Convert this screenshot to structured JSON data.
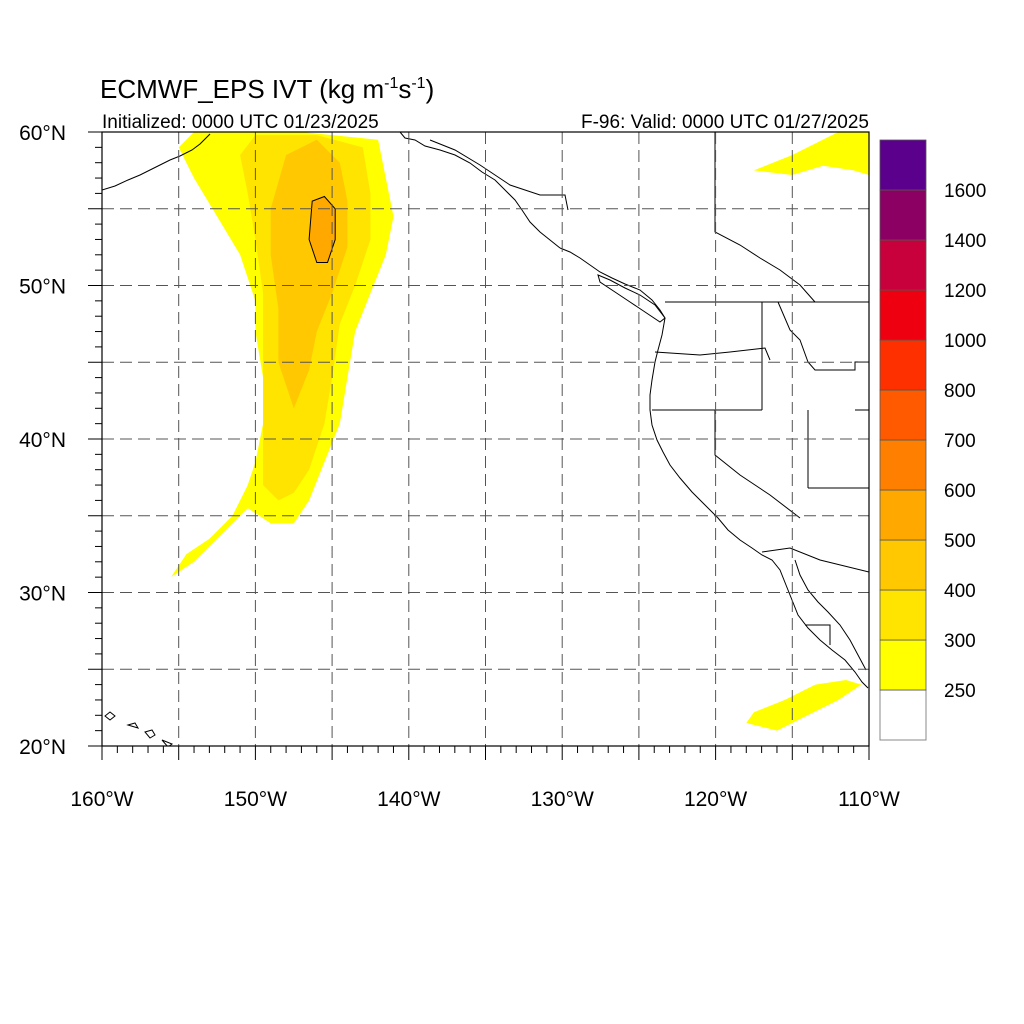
{
  "title": {
    "main": "ECMWF_EPS IVT (kg m",
    "sup1": "-1",
    "mid": "s",
    "sup2": "-1",
    "end": ")"
  },
  "subtitle_left": "Initialized: 0000 UTC 01/23/2025",
  "subtitle_right": "F-96: Valid: 0000 UTC 01/27/2025",
  "x_ticks": [
    {
      "value": -160,
      "label": "160°W"
    },
    {
      "value": -150,
      "label": "150°W"
    },
    {
      "value": -140,
      "label": "140°W"
    },
    {
      "value": -130,
      "label": "130°W"
    },
    {
      "value": -120,
      "label": "120°W"
    },
    {
      "value": -110,
      "label": "110°W"
    }
  ],
  "y_ticks": [
    {
      "value": 60,
      "label": "60°N"
    },
    {
      "value": 50,
      "label": "50°N"
    },
    {
      "value": 40,
      "label": "40°N"
    },
    {
      "value": 30,
      "label": "30°N"
    },
    {
      "value": 20,
      "label": "20°N"
    }
  ],
  "colorbar": {
    "levels": [
      {
        "label": "250",
        "color": "#ffff00"
      },
      {
        "label": "300",
        "color": "#ffe400"
      },
      {
        "label": "400",
        "color": "#ffc800"
      },
      {
        "label": "500",
        "color": "#ffa800"
      },
      {
        "label": "600",
        "color": "#ff8000"
      },
      {
        "label": "700",
        "color": "#ff5a00"
      },
      {
        "label": "800",
        "color": "#ff3000"
      },
      {
        "label": "1000",
        "color": "#ee0010"
      },
      {
        "label": "1200",
        "color": "#c8003c"
      },
      {
        "label": "1400",
        "color": "#8c0064"
      },
      {
        "label": "1600",
        "color": "#5a008c"
      }
    ],
    "below_color": "#ffffff"
  },
  "chart_data": {
    "type": "heatmap",
    "lon_range": [
      -160,
      -110
    ],
    "lat_range": [
      20,
      60
    ],
    "grid": true,
    "regions": [
      {
        "level": "250",
        "points": [
          [
            -155.5,
            31
          ],
          [
            -154.5,
            32.5
          ],
          [
            -153,
            33.5
          ],
          [
            -151.5,
            35
          ],
          [
            -150.5,
            37
          ],
          [
            -150,
            38.5
          ],
          [
            -149.5,
            41
          ],
          [
            -149.5,
            44
          ],
          [
            -150,
            47
          ],
          [
            -150,
            49
          ],
          [
            -151,
            52
          ],
          [
            -152.5,
            54.5
          ],
          [
            -154,
            57
          ],
          [
            -155,
            59
          ],
          [
            -154,
            60
          ],
          [
            -147,
            60
          ],
          [
            -142,
            59.5
          ],
          [
            -141.5,
            57
          ],
          [
            -141,
            54.5
          ],
          [
            -141.5,
            52
          ],
          [
            -142.5,
            49.5
          ],
          [
            -143.5,
            47
          ],
          [
            -144,
            44
          ],
          [
            -144.5,
            41
          ],
          [
            -145.5,
            38.5
          ],
          [
            -146.5,
            36
          ],
          [
            -147.5,
            34.5
          ],
          [
            -149,
            34.5
          ],
          [
            -150.5,
            35.5
          ],
          [
            -152,
            34
          ],
          [
            -154,
            32
          ],
          [
            -155.5,
            31
          ]
        ]
      },
      {
        "level": "300",
        "points": [
          [
            -149.5,
            37
          ],
          [
            -149.5,
            41
          ],
          [
            -149.5,
            45
          ],
          [
            -149.5,
            49.5
          ],
          [
            -150,
            53
          ],
          [
            -150.5,
            56
          ],
          [
            -151,
            58.5
          ],
          [
            -150,
            59.8
          ],
          [
            -146,
            59.8
          ],
          [
            -143,
            59
          ],
          [
            -142.5,
            56
          ],
          [
            -142.5,
            53
          ],
          [
            -143.5,
            50
          ],
          [
            -144.5,
            47.5
          ],
          [
            -145,
            44
          ],
          [
            -145.5,
            41
          ],
          [
            -146.5,
            38
          ],
          [
            -147.5,
            36.5
          ],
          [
            -148.5,
            36
          ],
          [
            -149.5,
            37
          ]
        ]
      },
      {
        "level": "400",
        "points": [
          [
            -147.5,
            42
          ],
          [
            -148.5,
            45
          ],
          [
            -148.5,
            48.5
          ],
          [
            -149,
            52
          ],
          [
            -149,
            55
          ],
          [
            -148,
            58.5
          ],
          [
            -146,
            59.5
          ],
          [
            -144.5,
            58
          ],
          [
            -144,
            55.5
          ],
          [
            -144,
            52.5
          ],
          [
            -145,
            49.5
          ],
          [
            -146,
            47
          ],
          [
            -146.5,
            44.5
          ],
          [
            -147.5,
            42
          ]
        ]
      },
      {
        "level": "500",
        "points": [
          [
            -146,
            51.5
          ],
          [
            -146.5,
            53
          ],
          [
            -146.3,
            55.5
          ],
          [
            -145.5,
            55.8
          ],
          [
            -144.8,
            55
          ],
          [
            -144.8,
            53
          ],
          [
            -145.3,
            51.5
          ],
          [
            -146,
            51.5
          ]
        ]
      },
      {
        "level": "250",
        "points": [
          [
            -117.5,
            57.5
          ],
          [
            -115,
            58.5
          ],
          [
            -112,
            60
          ],
          [
            -110,
            60
          ],
          [
            -110,
            57.2
          ],
          [
            -111,
            57.5
          ],
          [
            -113,
            57.8
          ],
          [
            -115,
            57.2
          ],
          [
            -117.5,
            57.5
          ]
        ]
      },
      {
        "level": "250",
        "points": [
          [
            -118,
            21.5
          ],
          [
            -116,
            21
          ],
          [
            -114,
            22
          ],
          [
            -112,
            23
          ],
          [
            -110.5,
            24
          ],
          [
            -111.5,
            24.3
          ],
          [
            -113.5,
            24
          ],
          [
            -115.5,
            23
          ],
          [
            -117.5,
            22.2
          ],
          [
            -118,
            21.5
          ]
        ]
      }
    ]
  }
}
